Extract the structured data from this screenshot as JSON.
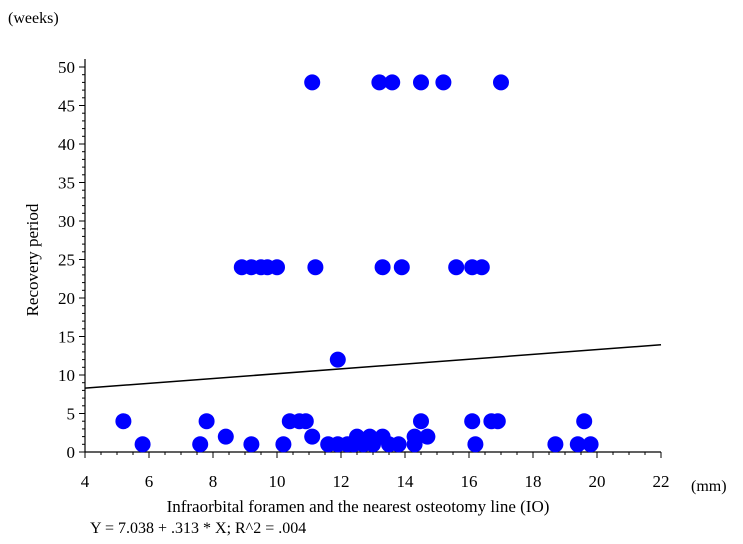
{
  "chart_data": {
    "type": "scatter",
    "title": "",
    "y_unit": "(weeks)",
    "x_unit": "(mm)",
    "xlabel": "Infraorbital foramen and the nearest osteotomy line (IO)",
    "ylabel": "Recovery period",
    "equation": "Y = 7.038 + .313 * X; R^2 = .004",
    "xlim": [
      4,
      22
    ],
    "ylim": [
      0,
      50
    ],
    "x_ticks": [
      4,
      6,
      8,
      10,
      12,
      14,
      16,
      18,
      20,
      22
    ],
    "x_tick_labels": [
      "4",
      "6",
      "8",
      "10",
      "12",
      "14",
      "16",
      "18",
      "20",
      "22"
    ],
    "y_ticks": [
      0,
      5,
      10,
      15,
      20,
      25,
      30,
      35,
      40,
      45,
      50
    ],
    "y_tick_labels": [
      "0",
      "5",
      "10",
      "15",
      "20",
      "25",
      "30",
      "35",
      "40",
      "45",
      "50"
    ],
    "grid": false,
    "legend": "none",
    "marker_color": "#0000ff",
    "line_color": "#000000",
    "regression": {
      "intercept": 7.038,
      "slope": 0.313
    },
    "points": [
      {
        "x": 11.1,
        "y": 48
      },
      {
        "x": 13.2,
        "y": 48
      },
      {
        "x": 13.6,
        "y": 48
      },
      {
        "x": 14.5,
        "y": 48
      },
      {
        "x": 15.2,
        "y": 48
      },
      {
        "x": 17.0,
        "y": 48
      },
      {
        "x": 8.9,
        "y": 24
      },
      {
        "x": 9.2,
        "y": 24
      },
      {
        "x": 9.5,
        "y": 24
      },
      {
        "x": 9.7,
        "y": 24
      },
      {
        "x": 10.0,
        "y": 24
      },
      {
        "x": 11.2,
        "y": 24
      },
      {
        "x": 13.3,
        "y": 24
      },
      {
        "x": 13.9,
        "y": 24
      },
      {
        "x": 15.6,
        "y": 24
      },
      {
        "x": 16.1,
        "y": 24
      },
      {
        "x": 16.4,
        "y": 24
      },
      {
        "x": 11.9,
        "y": 12
      },
      {
        "x": 5.2,
        "y": 4
      },
      {
        "x": 7.8,
        "y": 4
      },
      {
        "x": 10.4,
        "y": 4
      },
      {
        "x": 10.7,
        "y": 4
      },
      {
        "x": 10.9,
        "y": 4
      },
      {
        "x": 14.5,
        "y": 4
      },
      {
        "x": 16.1,
        "y": 4
      },
      {
        "x": 16.7,
        "y": 4
      },
      {
        "x": 16.9,
        "y": 4
      },
      {
        "x": 19.6,
        "y": 4
      },
      {
        "x": 8.4,
        "y": 2
      },
      {
        "x": 11.1,
        "y": 2
      },
      {
        "x": 12.5,
        "y": 2
      },
      {
        "x": 12.9,
        "y": 2
      },
      {
        "x": 13.3,
        "y": 2
      },
      {
        "x": 14.3,
        "y": 2
      },
      {
        "x": 14.7,
        "y": 2
      },
      {
        "x": 5.8,
        "y": 1
      },
      {
        "x": 7.6,
        "y": 1
      },
      {
        "x": 9.2,
        "y": 1
      },
      {
        "x": 10.2,
        "y": 1
      },
      {
        "x": 11.6,
        "y": 1
      },
      {
        "x": 11.9,
        "y": 1
      },
      {
        "x": 12.2,
        "y": 1
      },
      {
        "x": 12.4,
        "y": 1
      },
      {
        "x": 12.7,
        "y": 1
      },
      {
        "x": 13.0,
        "y": 1
      },
      {
        "x": 13.5,
        "y": 1
      },
      {
        "x": 13.8,
        "y": 1
      },
      {
        "x": 14.3,
        "y": 1
      },
      {
        "x": 16.2,
        "y": 1
      },
      {
        "x": 18.7,
        "y": 1
      },
      {
        "x": 19.4,
        "y": 1
      },
      {
        "x": 19.8,
        "y": 1
      }
    ]
  }
}
